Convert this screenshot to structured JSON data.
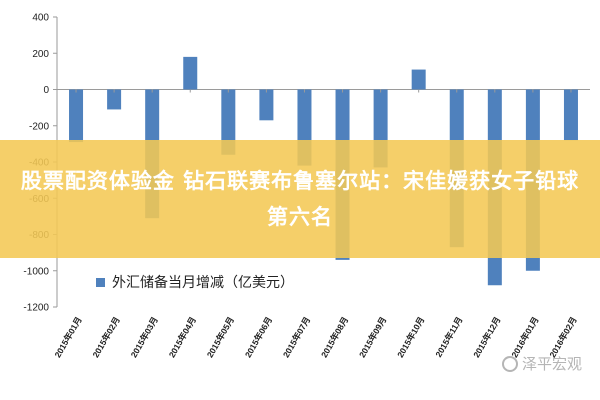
{
  "banner": {
    "title": "股票配资体验金 钻石联赛布鲁塞尔站：宋佳媛获女子铅球第六名"
  },
  "watermark": {
    "text": "泽平宏观",
    "icon": "wechat-icon"
  },
  "colors": {
    "bar": "#4f81bd",
    "banner": "#f4c854",
    "axis": "#9a9a9a",
    "grid": "#d9d9d9"
  },
  "chart_data": {
    "type": "bar",
    "categories": [
      "2015年01月",
      "2015年02月",
      "2015年03月",
      "2015年04月",
      "2015年05月",
      "2015年06月",
      "2015年07月",
      "2015年08月",
      "2015年09月",
      "2015年10月",
      "2015年11月",
      "2015年12月",
      "2016年01月",
      "2016年02月"
    ],
    "series": [
      {
        "name": "外汇储备当月增减（亿美元）",
        "values": [
          -290,
          -110,
          -710,
          180,
          -360,
          -170,
          -420,
          -940,
          -430,
          110,
          -870,
          -1080,
          -1000,
          -280
        ]
      }
    ],
    "legend": "外汇储备当月增减（亿美元）",
    "legend_position": "bottom-left-inside",
    "ylim": [
      -1200,
      400
    ],
    "yticks": [
      400,
      200,
      0,
      -200,
      -400,
      -600,
      -800,
      -1000,
      -1200
    ],
    "grid": false,
    "title": "",
    "xlabel": "",
    "ylabel": ""
  }
}
